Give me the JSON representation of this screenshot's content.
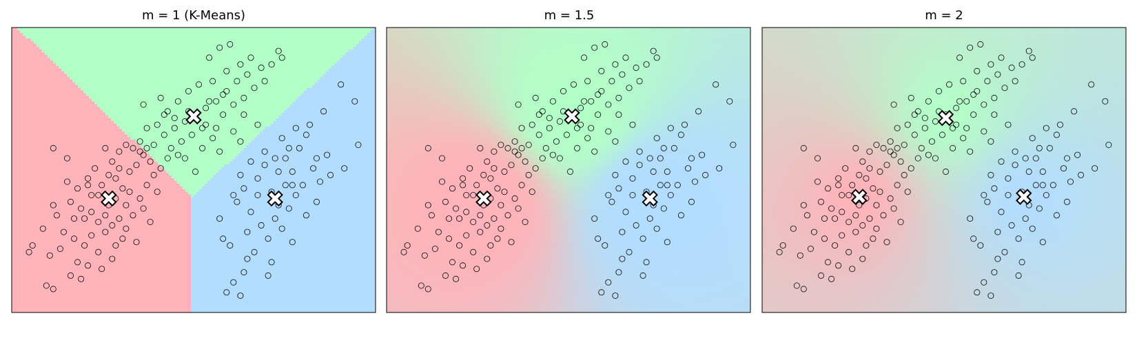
{
  "figure": {
    "panels": [
      {
        "title": "m = 1  (K-Means)",
        "m": 1
      },
      {
        "title": "m = 1.5",
        "m": 1.5
      },
      {
        "title": "m = 2",
        "m": 2
      }
    ]
  },
  "colors": {
    "cluster_0": "#ffb3ba",
    "cluster_1": "#b3ffc8",
    "cluster_2": "#b3ddff",
    "point_stroke": "#000000",
    "point_fill": "#ffffff",
    "center_fill": "#ffffff",
    "center_stroke": "#000000"
  },
  "chart_data": [
    {
      "type": "scatter",
      "title": "m = 1  (K-Means)",
      "fuzziness_m": 1,
      "xlim": [
        -4.2,
        6.3
      ],
      "ylim": [
        -4.0,
        4.5
      ],
      "axis_ticks": "none",
      "grid": false,
      "background": "hard cluster regions (Voronoi partition)",
      "centers": [
        {
          "cluster": 0,
          "x": -1.4,
          "y": -0.6
        },
        {
          "cluster": 1,
          "x": 1.05,
          "y": 1.85
        },
        {
          "cluster": 2,
          "x": 3.4,
          "y": -0.6
        }
      ],
      "marker_center": "x-filled"
    },
    {
      "type": "scatter",
      "title": "m = 1.5",
      "fuzziness_m": 1.5,
      "xlim": [
        -4.2,
        6.3
      ],
      "ylim": [
        -4.0,
        4.5
      ],
      "axis_ticks": "none",
      "grid": false,
      "background": "soft membership color blend",
      "centers": [
        {
          "cluster": 0,
          "x": -1.4,
          "y": -0.6
        },
        {
          "cluster": 1,
          "x": 1.15,
          "y": 1.85
        },
        {
          "cluster": 2,
          "x": 3.4,
          "y": -0.6
        }
      ],
      "marker_center": "x-filled"
    },
    {
      "type": "scatter",
      "title": "m = 2",
      "fuzziness_m": 2,
      "xlim": [
        -4.2,
        6.3
      ],
      "ylim": [
        -4.0,
        4.5
      ],
      "axis_ticks": "none",
      "grid": false,
      "background": "soft membership color blend",
      "centers": [
        {
          "cluster": 0,
          "x": -1.4,
          "y": -0.55
        },
        {
          "cluster": 1,
          "x": 1.1,
          "y": 1.8
        },
        {
          "cluster": 2,
          "x": 3.35,
          "y": -0.55
        }
      ],
      "marker_center": "x-filled"
    }
  ],
  "shared_points": {
    "series": [
      {
        "cluster": 0,
        "points": [
          [
            -3.0,
            -3.3
          ],
          [
            -3.2,
            -3.2
          ],
          [
            -2.8,
            -2.1
          ],
          [
            -3.1,
            -2.3
          ],
          [
            -2.7,
            -1.6
          ],
          [
            -2.4,
            -1.8
          ],
          [
            -2.3,
            -2.5
          ],
          [
            -2.0,
            -2.6
          ],
          [
            -2.1,
            -1.2
          ],
          [
            -2.2,
            -0.9
          ],
          [
            -1.9,
            -0.5
          ],
          [
            -1.7,
            -1.3
          ],
          [
            -1.5,
            -1.1
          ],
          [
            -1.3,
            -1.4
          ],
          [
            -1.1,
            -1.2
          ],
          [
            -0.9,
            -0.8
          ],
          [
            -1.6,
            -0.2
          ],
          [
            -1.4,
            0.1
          ],
          [
            -1.2,
            0.0
          ],
          [
            -1.0,
            -0.3
          ],
          [
            -0.8,
            0.2
          ],
          [
            -0.6,
            0.4
          ],
          [
            -0.4,
            0.7
          ],
          [
            -0.2,
            0.5
          ],
          [
            -1.8,
            0.3
          ],
          [
            -2.0,
            0.0
          ],
          [
            -2.3,
            -0.3
          ],
          [
            -2.5,
            -0.7
          ],
          [
            -2.6,
            0.6
          ],
          [
            -1.9,
            -1.7
          ],
          [
            -1.7,
            -2.2
          ],
          [
            -1.5,
            -1.6
          ],
          [
            -1.2,
            -2.0
          ],
          [
            -0.9,
            -1.5
          ],
          [
            -0.7,
            -1.1
          ],
          [
            -0.5,
            -0.6
          ],
          [
            -0.3,
            -0.2
          ],
          [
            -0.1,
            0.1
          ],
          [
            0.1,
            0.3
          ],
          [
            0.3,
            0.6
          ],
          [
            -1.3,
            0.5
          ],
          [
            -1.1,
            0.8
          ],
          [
            -0.9,
            1.0
          ],
          [
            -0.7,
            0.9
          ],
          [
            -2.9,
            -1.1
          ],
          [
            -2.6,
            -0.1
          ],
          [
            -2.2,
            -3.0
          ],
          [
            -1.6,
            -2.7
          ],
          [
            -1.0,
            -1.8
          ],
          [
            -0.8,
            -0.4
          ],
          [
            -0.4,
            -0.9
          ],
          [
            -1.4,
            -0.8
          ],
          [
            -1.9,
            -1.0
          ],
          [
            -2.1,
            -2.0
          ],
          [
            -3.6,
            -2.0
          ],
          [
            -3.7,
            -2.2
          ],
          [
            -3.3,
            -1.5
          ],
          [
            -3.0,
            -0.8
          ],
          [
            -1.5,
            0.9
          ],
          [
            -0.5,
            1.1
          ],
          [
            0.0,
            -0.4
          ],
          [
            -0.6,
            -1.9
          ],
          [
            -1.2,
            -0.6
          ],
          [
            -1.7,
            -0.5
          ],
          [
            -2.4,
            -1.2
          ],
          [
            -2.0,
            -0.2
          ],
          [
            -1.1,
            0.3
          ],
          [
            -0.3,
            0.9
          ],
          [
            -3.0,
            0.9
          ],
          [
            -2.5,
            -2.9
          ],
          [
            -1.3,
            -2.4
          ],
          [
            -0.2,
            -1.3
          ]
        ]
      },
      {
        "cluster": 1,
        "points": [
          [
            -0.5,
            0.8
          ],
          [
            -0.1,
            1.0
          ],
          [
            0.2,
            1.3
          ],
          [
            0.5,
            1.5
          ],
          [
            0.8,
            1.7
          ],
          [
            1.1,
            1.9
          ],
          [
            1.4,
            2.1
          ],
          [
            1.7,
            2.3
          ],
          [
            2.0,
            2.6
          ],
          [
            2.3,
            2.9
          ],
          [
            2.6,
            3.1
          ],
          [
            1.5,
            3.6
          ],
          [
            1.8,
            3.9
          ],
          [
            2.1,
            4.0
          ],
          [
            2.7,
            3.6
          ],
          [
            3.0,
            3.3
          ],
          [
            0.3,
            2.0
          ],
          [
            0.6,
            2.3
          ],
          [
            0.9,
            2.6
          ],
          [
            1.2,
            2.8
          ],
          [
            1.6,
            2.9
          ],
          [
            2.0,
            3.2
          ],
          [
            2.4,
            3.4
          ],
          [
            0.0,
            1.6
          ],
          [
            -0.3,
            1.5
          ],
          [
            0.4,
            0.9
          ],
          [
            0.7,
            1.1
          ],
          [
            1.0,
            1.3
          ],
          [
            1.3,
            1.5
          ],
          [
            1.9,
            1.9
          ],
          [
            2.2,
            2.2
          ],
          [
            2.5,
            2.4
          ],
          [
            2.8,
            2.7
          ],
          [
            3.1,
            2.9
          ],
          [
            3.3,
            3.4
          ],
          [
            3.5,
            3.8
          ],
          [
            0.8,
            0.6
          ],
          [
            1.3,
            0.9
          ],
          [
            1.6,
            1.2
          ],
          [
            0.1,
            2.4
          ],
          [
            -0.4,
            2.2
          ],
          [
            1.4,
            1.6
          ],
          [
            0.9,
            2.0
          ],
          [
            0.5,
            1.8
          ],
          [
            2.9,
            1.6
          ],
          [
            1.8,
            0.8
          ],
          [
            1.1,
            0.2
          ],
          [
            2.5,
            1.9
          ],
          [
            3.6,
            3.6
          ],
          [
            2.2,
            1.4
          ],
          [
            1.9,
            2.5
          ],
          [
            1.5,
            2.3
          ],
          [
            0.2,
            1.9
          ],
          [
            0.6,
            0.7
          ],
          [
            2.4,
            1.1
          ],
          [
            1.7,
            1.5
          ]
        ]
      },
      {
        "cluster": 2,
        "points": [
          [
            1.9,
            -1.8
          ],
          [
            2.1,
            -2.0
          ],
          [
            2.3,
            -0.7
          ],
          [
            2.5,
            -0.3
          ],
          [
            2.7,
            -1.0
          ],
          [
            2.9,
            0.0
          ],
          [
            3.1,
            0.4
          ],
          [
            3.3,
            -0.4
          ],
          [
            3.5,
            0.2
          ],
          [
            3.7,
            0.6
          ],
          [
            3.9,
            -0.2
          ],
          [
            4.1,
            0.9
          ],
          [
            4.3,
            1.3
          ],
          [
            4.5,
            0.3
          ],
          [
            4.7,
            -0.1
          ],
          [
            4.9,
            0.7
          ],
          [
            3.0,
            -1.4
          ],
          [
            3.2,
            -1.8
          ],
          [
            3.4,
            -1.2
          ],
          [
            3.6,
            -1.5
          ],
          [
            3.8,
            -0.9
          ],
          [
            4.0,
            -0.5
          ],
          [
            4.2,
            -0.2
          ],
          [
            2.6,
            -1.6
          ],
          [
            2.8,
            -2.2
          ],
          [
            3.3,
            -2.5
          ],
          [
            2.5,
            -2.8
          ],
          [
            2.2,
            -3.1
          ],
          [
            2.0,
            -3.4
          ],
          [
            2.4,
            -3.5
          ],
          [
            3.8,
            0.9
          ],
          [
            4.4,
            1.6
          ],
          [
            4.8,
            2.0
          ],
          [
            5.3,
            2.8
          ],
          [
            5.7,
            2.3
          ],
          [
            5.4,
            0.3
          ],
          [
            5.8,
            1.0
          ],
          [
            4.6,
            -0.7
          ],
          [
            4.3,
            -1.1
          ],
          [
            3.9,
            -1.9
          ],
          [
            2.9,
            -0.5
          ],
          [
            3.5,
            -0.8
          ],
          [
            3.1,
            0.8
          ],
          [
            2.7,
            0.5
          ],
          [
            2.4,
            0.1
          ],
          [
            3.6,
            1.2
          ],
          [
            4.0,
            1.5
          ],
          [
            3.2,
            -2.9
          ],
          [
            1.8,
            -1.2
          ],
          [
            2.6,
            -2.4
          ],
          [
            3.9,
            0.2
          ],
          [
            4.6,
            0.6
          ],
          [
            5.0,
            0.1
          ],
          [
            3.4,
            0.6
          ],
          [
            2.2,
            -0.5
          ],
          [
            3.7,
            -0.2
          ]
        ]
      }
    ]
  }
}
